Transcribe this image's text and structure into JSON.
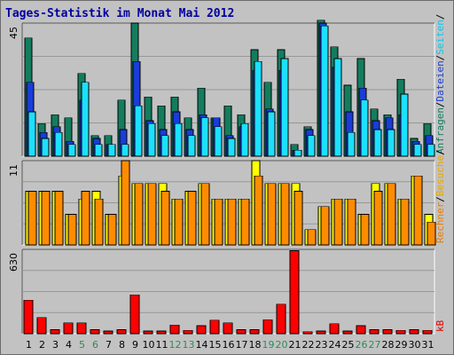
{
  "title": "Tages-Statistik im Monat Mai 2012",
  "colors": {
    "title": "#0000a0",
    "panel": "#c2c2c2",
    "grid": "#989898",
    "weekday_label": "#000000",
    "weekend_label": "#2e8b57",
    "label_anfragen": "#137d5e",
    "label_dateien": "#1a3cd8",
    "label_seiten": "#11c4e8",
    "label_besuche": "#e6a700",
    "label_rechner": "#e87e00",
    "label_kb": "#e00000",
    "anfragen": "#137d5e",
    "dateien": "#1a3cd8",
    "seiten": "#1ce0ff",
    "besuche": "#ffff00",
    "rechner": "#ff8c00",
    "kb": "#ff0000"
  },
  "chart_data": [
    {
      "type": "bar",
      "panel": "top",
      "y_max_label": "45",
      "ylim": [
        0,
        45
      ],
      "grid": true,
      "categories": [
        "1",
        "2",
        "3",
        "4",
        "5",
        "6",
        "7",
        "8",
        "9",
        "10",
        "11",
        "12",
        "13",
        "14",
        "15",
        "16",
        "17",
        "18",
        "19",
        "20",
        "21",
        "22",
        "23",
        "24",
        "25",
        "26",
        "27",
        "28",
        "29",
        "30",
        "31"
      ],
      "weekend_days": [
        "5",
        "6",
        "12",
        "13",
        "19",
        "20",
        "26",
        "27"
      ],
      "series": [
        {
          "name": "Anfragen",
          "color_key": "anfragen",
          "values": [
            40,
            11,
            14,
            13,
            28,
            7,
            7,
            19,
            45,
            20,
            17,
            20,
            13,
            23,
            13,
            17,
            14,
            36,
            25,
            36,
            4,
            10,
            46,
            37,
            24,
            33,
            16,
            14,
            26,
            6,
            11
          ]
        },
        {
          "name": "Dateien",
          "color_key": "dateien",
          "values": [
            25,
            8,
            10,
            5,
            19,
            6,
            4,
            9,
            32,
            12,
            9,
            15,
            9,
            14,
            13,
            7,
            10,
            29,
            16,
            29,
            2,
            9,
            45,
            30,
            15,
            23,
            12,
            13,
            14,
            5,
            7
          ]
        },
        {
          "name": "Seiten",
          "color_key": "seiten",
          "values": [
            15,
            6,
            8,
            4,
            25,
            4,
            4,
            4,
            17,
            11,
            7,
            11,
            7,
            13,
            10,
            6,
            11,
            32,
            15,
            33,
            2,
            7,
            44,
            33,
            8,
            19,
            9,
            9,
            21,
            4,
            4
          ]
        }
      ],
      "right_labels": [
        "Anfragen",
        "/",
        "Dateien",
        "/",
        "Seiten",
        "/"
      ]
    },
    {
      "type": "bar",
      "panel": "middle",
      "y_max_label": "11",
      "ylim": [
        0,
        11
      ],
      "grid": true,
      "categories": [
        "1",
        "2",
        "3",
        "4",
        "5",
        "6",
        "7",
        "8",
        "9",
        "10",
        "11",
        "12",
        "13",
        "14",
        "15",
        "16",
        "17",
        "18",
        "19",
        "20",
        "21",
        "22",
        "23",
        "24",
        "25",
        "26",
        "27",
        "28",
        "29",
        "30",
        "31"
      ],
      "series": [
        {
          "name": "Besuche",
          "color_key": "besuche",
          "values": [
            7,
            7,
            7,
            4,
            6,
            7,
            4,
            9,
            8,
            8,
            8,
            6,
            7,
            8,
            6,
            6,
            6,
            11,
            8,
            8,
            8,
            2,
            5,
            6,
            6,
            4,
            8,
            8,
            6,
            9,
            4
          ]
        },
        {
          "name": "Rechner",
          "color_key": "rechner",
          "values": [
            7,
            7,
            7,
            4,
            7,
            6,
            4,
            11,
            8,
            8,
            7,
            6,
            7,
            8,
            6,
            6,
            6,
            9,
            8,
            8,
            7,
            2,
            5,
            6,
            6,
            4,
            7,
            8,
            6,
            9,
            3
          ]
        }
      ],
      "right_labels": [
        "Rechner",
        "/",
        "Besuche",
        "/"
      ]
    },
    {
      "type": "bar",
      "panel": "bottom",
      "y_max_label": "630",
      "ylim": [
        0,
        630
      ],
      "grid": true,
      "categories": [
        "1",
        "2",
        "3",
        "4",
        "5",
        "6",
        "7",
        "8",
        "9",
        "10",
        "11",
        "12",
        "13",
        "14",
        "15",
        "16",
        "17",
        "18",
        "19",
        "20",
        "21",
        "22",
        "23",
        "24",
        "25",
        "26",
        "27",
        "28",
        "29",
        "30",
        "31"
      ],
      "series": [
        {
          "name": "kB",
          "color_key": "kb",
          "values": [
            250,
            120,
            30,
            80,
            80,
            30,
            20,
            30,
            290,
            20,
            20,
            65,
            25,
            60,
            100,
            80,
            30,
            30,
            105,
            220,
            620,
            15,
            20,
            75,
            20,
            60,
            30,
            30,
            25,
            30,
            25
          ]
        }
      ],
      "right_labels": [
        "kB"
      ]
    }
  ]
}
